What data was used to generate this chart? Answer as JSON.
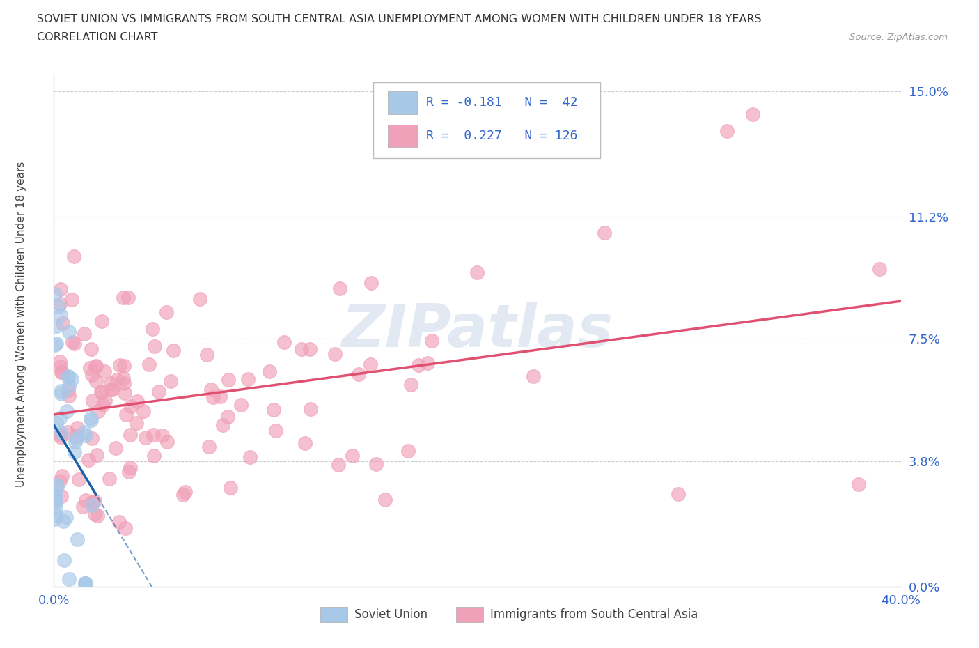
{
  "title_line1": "SOVIET UNION VS IMMIGRANTS FROM SOUTH CENTRAL ASIA UNEMPLOYMENT AMONG WOMEN WITH CHILDREN UNDER 18 YEARS",
  "title_line2": "CORRELATION CHART",
  "source": "Source: ZipAtlas.com",
  "ylabel": "Unemployment Among Women with Children Under 18 years",
  "legend_label1": "Soviet Union",
  "legend_label2": "Immigrants from South Central Asia",
  "color_soviet": "#a8c8e8",
  "color_immigrants": "#f0a0b8",
  "color_trendline_soviet": "#1a5fa8",
  "color_trendline_immigrants": "#e05070",
  "xmin": 0.0,
  "xmax": 0.4,
  "ymin": 0.0,
  "ymax": 0.155,
  "ytick_vals": [
    0.0,
    0.038,
    0.075,
    0.112,
    0.15
  ],
  "ytick_labels": [
    "0.0%",
    "3.8%",
    "7.5%",
    "11.2%",
    "15.0%"
  ],
  "xtick_vals": [
    0.0,
    0.05,
    0.1,
    0.15,
    0.2,
    0.25,
    0.3,
    0.35,
    0.4
  ],
  "xtick_labels": [
    "0.0%",
    "",
    "",
    "",
    "",
    "",
    "",
    "",
    "40.0%"
  ],
  "background_color": "#ffffff",
  "grid_color": "#cccccc",
  "tick_label_color": "#3366cc",
  "title_color": "#333333",
  "watermark_text": "ZIPatlas",
  "watermark_color": "#c8d4e8",
  "legend_r1_text": "R = -0.181",
  "legend_n1_text": "N =  42",
  "legend_r2_text": "R =  0.227",
  "legend_n2_text": "N = 126"
}
